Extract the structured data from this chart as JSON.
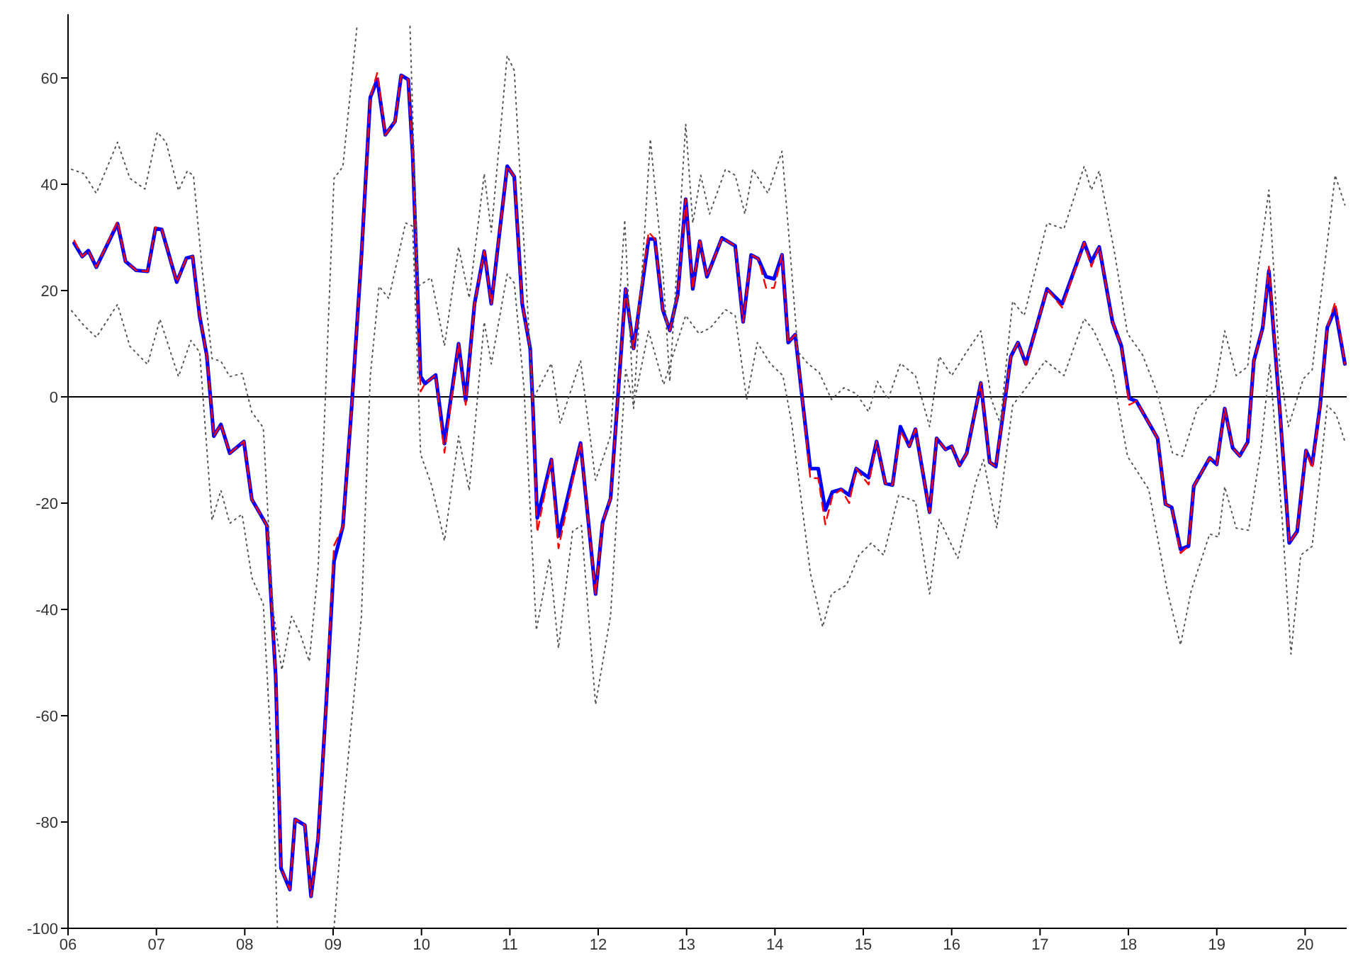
{
  "chart_data": {
    "type": "line",
    "xlim": [
      6,
      20.47
    ],
    "ylim": [
      -100,
      72
    ],
    "xticks": [
      {
        "value": 6,
        "label": "06"
      },
      {
        "value": 7,
        "label": "07"
      },
      {
        "value": 8,
        "label": "08"
      },
      {
        "value": 9,
        "label": "09"
      },
      {
        "value": 10,
        "label": "10"
      },
      {
        "value": 11,
        "label": "11"
      },
      {
        "value": 12,
        "label": "12"
      },
      {
        "value": 13,
        "label": "13"
      },
      {
        "value": 14,
        "label": "14"
      },
      {
        "value": 15,
        "label": "15"
      },
      {
        "value": 16,
        "label": "16"
      },
      {
        "value": 17,
        "label": "17"
      },
      {
        "value": 18,
        "label": "18"
      },
      {
        "value": 19,
        "label": "19"
      },
      {
        "value": 20,
        "label": "20"
      }
    ],
    "yticks": [
      -100,
      -80,
      -60,
      -40,
      -20,
      0,
      20,
      40,
      60
    ],
    "marker": "none",
    "ref_lines": [
      {
        "axis": "y",
        "value": 0,
        "color": "#000000",
        "line_style": "solid"
      }
    ],
    "series": [
      {
        "color": "#555555",
        "line_style": "dotted",
        "x": [
          6.04,
          6.18,
          6.32,
          6.56,
          6.7,
          6.87,
          7.01,
          7.11,
          7.25,
          7.35,
          7.42,
          7.52,
          7.63,
          7.73,
          7.83,
          7.97,
          8.08,
          8.21,
          8.32,
          8.42,
          8.53,
          8.63,
          8.73,
          8.83,
          8.9,
          9.01,
          9.11,
          9.27,
          9.55,
          9.87,
          9.96,
          10.11,
          10.26,
          10.42,
          10.54,
          10.71,
          10.79,
          10.97,
          11.05,
          11.16,
          11.26,
          11.47,
          11.57,
          11.8,
          11.97,
          12.14,
          12.3,
          12.4,
          12.59,
          12.73,
          12.81,
          12.99,
          13.07,
          13.16,
          13.26,
          13.44,
          13.55,
          13.66,
          13.75,
          13.92,
          14.08,
          14.16,
          14.26,
          14.37,
          14.5,
          14.64,
          14.78,
          14.92,
          15.06,
          15.16,
          15.28,
          15.42,
          15.59,
          15.75,
          15.86,
          16.0,
          16.17,
          16.33,
          16.45,
          16.55,
          16.69,
          16.82,
          17.08,
          17.27,
          17.5,
          17.58,
          17.67,
          17.85,
          17.99,
          18.16,
          18.33,
          18.5,
          18.61,
          18.78,
          18.98,
          19.09,
          19.22,
          19.35,
          19.46,
          19.59,
          19.71,
          19.81,
          19.98,
          20.08,
          20.25,
          20.34,
          20.45
        ],
        "values": [
          42.8,
          42,
          38.3,
          47.9,
          41.1,
          39.1,
          49.8,
          47.9,
          38.8,
          42.5,
          41.6,
          23.6,
          7.2,
          6.7,
          3.8,
          4.4,
          -2.9,
          -5.8,
          -40.2,
          -51.4,
          -41.3,
          -44.7,
          -49.8,
          -32.3,
          -5.2,
          41.1,
          43.3,
          69.7,
          null,
          69.7,
          20.8,
          22.4,
          9.6,
          28.2,
          18.6,
          42,
          31,
          64.2,
          61.4,
          28.7,
          -0.5,
          6.3,
          -5,
          6.8,
          -15.7,
          -7.3,
          33.3,
          -2.2,
          48.5,
          24.3,
          2.9,
          51.3,
          32.7,
          41.7,
          34.4,
          42.8,
          41.7,
          34.4,
          42.8,
          38.3,
          46.2,
          29.9,
          8.5,
          6.3,
          4.6,
          -0.5,
          1.7,
          0.6,
          -2.8,
          2.9,
          -0.5,
          6.3,
          4,
          -5.6,
          7.6,
          4,
          8.5,
          12.4,
          -0.5,
          -5,
          18,
          15.3,
          32.7,
          31.6,
          43.4,
          38.9,
          42.5,
          26.5,
          11.9,
          7.9,
          0.6,
          -10.6,
          -11.2,
          -2.2,
          1.2,
          12.4,
          4,
          5.7,
          23.1,
          38.9,
          6.2,
          -5.6,
          3.4,
          5.1,
          28.8,
          41.7,
          36.1
        ]
      },
      {
        "color": "#555555",
        "line_style": "dotted",
        "x": [
          6.04,
          6.18,
          6.32,
          6.56,
          6.7,
          6.9,
          7.04,
          7.25,
          7.39,
          7.49,
          7.63,
          7.73,
          7.83,
          7.97,
          8.08,
          8.21,
          8.32,
          8.37,
          8.6,
          9.01,
          9.11,
          9.32,
          9.42,
          9.52,
          9.63,
          9.82,
          9.9,
          9.99,
          10.11,
          10.26,
          10.42,
          10.54,
          10.71,
          10.79,
          10.97,
          11.05,
          11.16,
          11.3,
          11.45,
          11.55,
          11.71,
          11.81,
          11.97,
          12.14,
          12.31,
          12.4,
          12.57,
          12.74,
          12.99,
          13.14,
          13.27,
          13.44,
          13.55,
          13.68,
          13.8,
          13.95,
          14.09,
          14.19,
          14.4,
          14.54,
          14.64,
          14.81,
          14.95,
          15.09,
          15.23,
          15.4,
          15.59,
          15.75,
          15.86,
          16.07,
          16.27,
          16.36,
          16.51,
          16.69,
          16.82,
          17.06,
          17.27,
          17.5,
          17.61,
          17.82,
          17.99,
          18.23,
          18.44,
          18.59,
          18.71,
          18.92,
          19.02,
          19.09,
          19.22,
          19.36,
          19.5,
          19.6,
          19.74,
          19.84,
          19.95,
          20.08,
          20.25,
          20.35,
          20.45
        ],
        "values": [
          16.2,
          13.4,
          11.2,
          17.4,
          9.5,
          6.1,
          14.6,
          3.8,
          10.6,
          8.4,
          -23.2,
          -17.6,
          -23.8,
          -22.1,
          -34,
          -39,
          -73,
          -100,
          null,
          -100,
          -78.6,
          -41.3,
          3.8,
          20.8,
          18.5,
          32.7,
          32.1,
          -10.8,
          -16.4,
          -27.1,
          -7.4,
          -17.6,
          14.1,
          6.2,
          23.1,
          21.4,
          1.7,
          -43.9,
          -30.4,
          -47.3,
          -25.3,
          -24.2,
          -57.9,
          -41.1,
          5.1,
          -1.6,
          12.4,
          2.3,
          15.3,
          11.9,
          13,
          16.4,
          15.3,
          -0.5,
          10.2,
          6.2,
          4,
          -5,
          -33.1,
          -43.3,
          -37.1,
          -35.4,
          -29.8,
          -27.5,
          -29.8,
          -18.5,
          -19.7,
          -37.1,
          -23,
          -30.4,
          -16.3,
          -11.8,
          -24.7,
          -1.6,
          1.2,
          6.8,
          4,
          14.7,
          12.4,
          4.6,
          -11.2,
          -17.4,
          -36.5,
          -46.7,
          -36.5,
          -25.8,
          -26.4,
          -16.9,
          -24.7,
          -25.1,
          -9.6,
          6.2,
          -23,
          -48.4,
          -29.8,
          -28.1,
          -1.6,
          -3.3,
          -8.4
        ]
      },
      {
        "color": "#ff0000",
        "line_style": "dashed",
        "x": [
          6.07,
          6.16,
          6.23,
          6.32,
          6.56,
          6.65,
          6.77,
          6.9,
          6.99,
          7.06,
          7.23,
          7.34,
          7.41,
          7.49,
          7.57,
          7.65,
          7.73,
          7.83,
          7.99,
          8.08,
          8.25,
          8.35,
          8.41,
          8.51,
          8.57,
          8.68,
          8.75,
          8.83,
          8.92,
          9.01,
          9.11,
          9.21,
          9.32,
          9.42,
          9.5,
          9.59,
          9.7,
          9.77,
          9.85,
          9.9,
          9.99,
          10.04,
          10.16,
          10.26,
          10.42,
          10.5,
          10.6,
          10.71,
          10.79,
          10.97,
          11.05,
          11.14,
          11.23,
          11.26,
          11.31,
          11.47,
          11.55,
          11.8,
          11.97,
          12.05,
          12.14,
          12.31,
          12.4,
          12.57,
          12.64,
          12.73,
          12.81,
          12.9,
          12.99,
          13.07,
          13.15,
          13.23,
          13.4,
          13.55,
          13.64,
          13.73,
          13.81,
          13.9,
          13.99,
          14.08,
          14.15,
          14.23,
          14.31,
          14.4,
          14.49,
          14.57,
          14.65,
          14.75,
          14.84,
          14.92,
          15.06,
          15.15,
          15.25,
          15.33,
          15.42,
          15.52,
          15.59,
          15.75,
          15.83,
          15.93,
          16.0,
          16.09,
          16.17,
          16.33,
          16.43,
          16.5,
          16.67,
          16.75,
          16.84,
          17.08,
          17.25,
          17.5,
          17.58,
          17.67,
          17.82,
          17.92,
          18.01,
          18.09,
          18.33,
          18.42,
          18.49,
          18.59,
          18.68,
          18.74,
          18.92,
          19.0,
          19.09,
          19.18,
          19.26,
          19.35,
          19.42,
          19.52,
          19.59,
          19.71,
          19.82,
          19.91,
          20.01,
          20.08,
          20.17,
          20.25,
          20.34,
          20.45
        ],
        "values": [
          29.4,
          26.4,
          27.5,
          24.4,
          33,
          25.5,
          23.8,
          23.6,
          31.9,
          31.5,
          21.6,
          26.1,
          26.4,
          15.1,
          7.8,
          -7.4,
          -5.2,
          -10.6,
          -8.4,
          -19.3,
          -24.2,
          -52.6,
          -88.7,
          -92.7,
          -79.5,
          -80.6,
          -94,
          -83.1,
          -58.2,
          -28,
          -24.4,
          -1.8,
          26.4,
          56.3,
          61,
          49.3,
          51.8,
          60.5,
          59.7,
          45.6,
          1,
          2.5,
          4.1,
          -10.5,
          10,
          -1.5,
          17.5,
          27.4,
          17.5,
          43.4,
          41.4,
          17.5,
          9.1,
          -1.6,
          -25.5,
          -11.8,
          -28.5,
          -8.7,
          -37.1,
          -23.6,
          -19.1,
          20.3,
          9.1,
          31,
          29.7,
          16.4,
          12.5,
          19.2,
          37.2,
          20.3,
          29.3,
          22.6,
          29.9,
          28.4,
          14.1,
          26.7,
          26,
          20.5,
          20.5,
          26.7,
          10.2,
          11.7,
          -0.5,
          -15.3,
          -15.3,
          -24,
          -18.7,
          -17.4,
          -20,
          -13.5,
          -16.5,
          -8.4,
          -16.3,
          -16.6,
          -6.5,
          -9.3,
          -6.1,
          -21.7,
          -7.8,
          -9.9,
          -9.3,
          -12.9,
          -10.6,
          2.6,
          -12.3,
          -13.1,
          7.6,
          10.2,
          6,
          20.3,
          16.8,
          29,
          24.5,
          28.2,
          14.1,
          9.6,
          -1.5,
          -0.8,
          -7.8,
          -20.2,
          -20.8,
          -29.4,
          -28.1,
          -16.8,
          -11.5,
          -12.7,
          -2.2,
          -9.6,
          -11.1,
          -8.5,
          6.8,
          13,
          24.5,
          -1.7,
          -27.5,
          -25.3,
          -10.1,
          -13.5,
          -1.6,
          13,
          17.8,
          6.2
        ]
      },
      {
        "color": "#0000ff",
        "line_style": "solid",
        "x": [
          6.07,
          6.16,
          6.23,
          6.32,
          6.56,
          6.65,
          6.77,
          6.9,
          6.99,
          7.06,
          7.23,
          7.34,
          7.41,
          7.49,
          7.57,
          7.65,
          7.73,
          7.83,
          7.99,
          8.08,
          8.25,
          8.35,
          8.41,
          8.51,
          8.57,
          8.68,
          8.75,
          8.83,
          8.92,
          9.01,
          9.11,
          9.21,
          9.32,
          9.42,
          9.5,
          9.59,
          9.7,
          9.77,
          9.85,
          9.9,
          9.99,
          10.04,
          10.16,
          10.26,
          10.42,
          10.5,
          10.6,
          10.71,
          10.79,
          10.97,
          11.05,
          11.14,
          11.23,
          11.26,
          11.31,
          11.47,
          11.55,
          11.8,
          11.97,
          12.05,
          12.14,
          12.31,
          12.4,
          12.57,
          12.64,
          12.73,
          12.81,
          12.9,
          12.99,
          13.07,
          13.15,
          13.23,
          13.4,
          13.55,
          13.64,
          13.73,
          13.81,
          13.9,
          13.99,
          14.08,
          14.15,
          14.23,
          14.31,
          14.4,
          14.49,
          14.57,
          14.65,
          14.75,
          14.84,
          14.92,
          15.06,
          15.15,
          15.25,
          15.33,
          15.42,
          15.52,
          15.59,
          15.75,
          15.83,
          15.93,
          16.0,
          16.09,
          16.17,
          16.33,
          16.43,
          16.5,
          16.67,
          16.75,
          16.84,
          17.08,
          17.25,
          17.5,
          17.58,
          17.67,
          17.82,
          17.92,
          18.01,
          18.09,
          18.33,
          18.42,
          18.49,
          18.59,
          18.68,
          18.74,
          18.92,
          19.0,
          19.09,
          19.18,
          19.26,
          19.35,
          19.42,
          19.52,
          19.59,
          19.71,
          19.82,
          19.91,
          20.01,
          20.08,
          20.17,
          20.25,
          20.34,
          20.45
        ],
        "values": [
          28.9,
          26.4,
          27.5,
          24.4,
          32.6,
          25.5,
          23.8,
          23.6,
          31.7,
          31.5,
          21.6,
          26.1,
          26.4,
          15.1,
          7.8,
          -7.4,
          -5.2,
          -10.6,
          -8.4,
          -19.3,
          -24.2,
          -52.6,
          -88.7,
          -92.7,
          -79.5,
          -80.6,
          -94,
          -83.1,
          -58.2,
          -30.9,
          -24.4,
          -1.8,
          26.4,
          56.3,
          59.7,
          49.3,
          51.8,
          60.5,
          59.7,
          45.6,
          3.8,
          2.5,
          4.1,
          -8.8,
          10,
          -0.7,
          17.5,
          27.4,
          17.5,
          43.4,
          41.4,
          17.5,
          9.1,
          -1.6,
          -22.8,
          -11.8,
          -26.2,
          -8.7,
          -37.1,
          -23.6,
          -19.1,
          20.3,
          9.1,
          29.7,
          29.7,
          16.4,
          12.5,
          19.2,
          37.2,
          20.3,
          29.3,
          22.6,
          29.9,
          28.4,
          14.1,
          26.7,
          26,
          22.6,
          22.2,
          26.7,
          10.2,
          11.7,
          -0.5,
          -13.5,
          -13.5,
          -21.3,
          -17.9,
          -17.4,
          -18.5,
          -13.5,
          -15.2,
          -8.4,
          -16.3,
          -16.6,
          -5.6,
          -9.3,
          -6.1,
          -21.7,
          -7.8,
          -9.9,
          -9.3,
          -12.9,
          -10.6,
          2.6,
          -12.3,
          -13.1,
          7.6,
          10.2,
          6.2,
          20.3,
          17.5,
          29,
          25.4,
          28.2,
          14.1,
          9.6,
          -0.3,
          -0.8,
          -7.8,
          -20.2,
          -20.8,
          -28.7,
          -28.1,
          -16.8,
          -11.5,
          -12.7,
          -2.2,
          -9.6,
          -11.1,
          -8.5,
          6.8,
          13,
          23.7,
          -1.7,
          -27.5,
          -25.3,
          -10.1,
          -12.7,
          -1.6,
          13,
          16.6,
          6.2
        ]
      }
    ]
  }
}
